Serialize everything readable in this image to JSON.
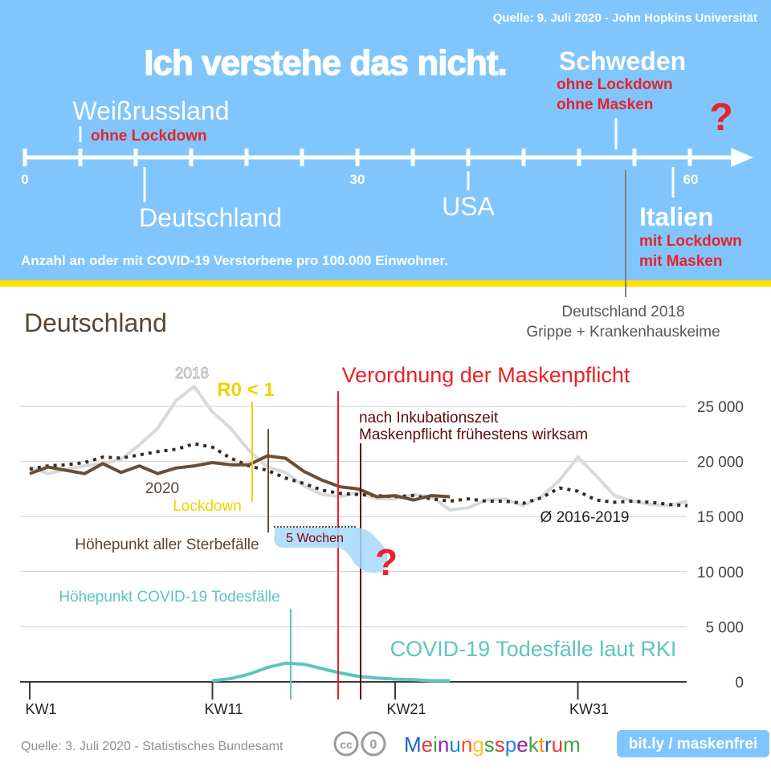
{
  "top": {
    "source": "Quelle: 9. Juli 2020 - John Hopkins Universität",
    "headline": "Ich verstehe das nicht.",
    "caption": "Anzahl an oder mit COVID-19 Verstorbene pro 100.000 Einwohner.",
    "question_mark": "?",
    "scale_labels": [
      "0",
      "30",
      "60"
    ],
    "countries": [
      {
        "name": "Weißrussland",
        "value": 2,
        "notes": [
          "ohne Lockdown"
        ]
      },
      {
        "name": "Deutschland",
        "value": 11,
        "notes": []
      },
      {
        "name": "USA",
        "value": 40,
        "notes": []
      },
      {
        "name": "Schweden",
        "value": 54,
        "notes": [
          "ohne Lockdown",
          "ohne Masken"
        ]
      },
      {
        "name": "Italien",
        "value": 58,
        "notes": [
          "mit Lockdown",
          "mit Masken"
        ]
      }
    ],
    "reference": {
      "lines": [
        "Deutschland 2018",
        "Grippe + Krankenhauskeime"
      ],
      "value": 55
    }
  },
  "chart_data": {
    "type": "line",
    "title": "Deutschland",
    "ylim": [
      0,
      27000
    ],
    "y_ticks": [
      "0",
      "5 000",
      "10 000",
      "15 000",
      "20 000",
      "25 000"
    ],
    "x_ticks": [
      "KW1",
      "KW11",
      "KW21",
      "KW31"
    ],
    "series": [
      {
        "name": "2018",
        "x": [
          1,
          2,
          3,
          4,
          5,
          6,
          7,
          8,
          9,
          10,
          11,
          12,
          13,
          14,
          15,
          16,
          17,
          18,
          19,
          20,
          21,
          22,
          23,
          24,
          25,
          26,
          27,
          28,
          29,
          30,
          31,
          32,
          33,
          34,
          35,
          36,
          37
        ],
        "values": [
          19500,
          18900,
          19300,
          19600,
          19800,
          20200,
          21500,
          23000,
          25500,
          26800,
          24500,
          23000,
          21000,
          19500,
          19000,
          17800,
          17000,
          16800,
          17200,
          16600,
          16600,
          17000,
          16800,
          15600,
          15800,
          16500,
          16600,
          16000,
          16800,
          18300,
          20400,
          18700,
          16900,
          16400,
          16100,
          16000,
          16400
        ]
      },
      {
        "name": "2020",
        "x": [
          1,
          2,
          3,
          4,
          5,
          6,
          7,
          8,
          9,
          10,
          11,
          12,
          13,
          14,
          15,
          16,
          17,
          18,
          19,
          20,
          21,
          22,
          23,
          24
        ],
        "values": [
          18900,
          19500,
          19200,
          18900,
          19800,
          19000,
          19600,
          18900,
          19400,
          19600,
          19900,
          19700,
          19700,
          20500,
          20300,
          19100,
          18300,
          17700,
          17500,
          16800,
          16900,
          16500,
          16900,
          16800
        ]
      },
      {
        "name": "Ø 2016-2019",
        "x": [
          1,
          2,
          3,
          4,
          5,
          6,
          7,
          8,
          9,
          10,
          11,
          12,
          13,
          14,
          15,
          16,
          17,
          18,
          19,
          20,
          21,
          22,
          23,
          24,
          25,
          26,
          27,
          28,
          29,
          30,
          31,
          32,
          33,
          34,
          35,
          36,
          37
        ],
        "values": [
          19300,
          19600,
          19700,
          19900,
          20400,
          20300,
          20600,
          20900,
          21100,
          21600,
          21300,
          20300,
          19600,
          19200,
          18500,
          18000,
          17400,
          17100,
          17000,
          16900,
          16800,
          16900,
          16600,
          16400,
          16600,
          16400,
          16400,
          16200,
          16700,
          17600,
          17300,
          16500,
          16300,
          16400,
          16300,
          16100,
          16000
        ]
      },
      {
        "name": "COVID-19 Todesfälle laut RKI",
        "x": [
          11,
          12,
          13,
          14,
          15,
          16,
          17,
          18,
          19,
          20,
          21,
          22,
          23,
          24
        ],
        "values": [
          100,
          300,
          700,
          1300,
          1700,
          1600,
          1200,
          800,
          500,
          350,
          250,
          200,
          100,
          100
        ]
      }
    ],
    "annotations": {
      "maskenpflicht": "Verordnung der Maskenpflicht",
      "r0": "R0 < 1",
      "lockdown": "Lockdown",
      "inkubation": [
        "nach Inkubationszeit",
        "Maskenpflicht frühestens wirksam"
      ],
      "hoehepunkt_sterbe": "Höhepunkt aller Sterbefälle",
      "hoehepunkt_covid": "Höhepunkt COVID-19 Todesfälle",
      "wochen": "5 Wochen",
      "question": "?",
      "label_2020": "2020",
      "label_2018": "2018",
      "label_avg": "Ø 2016-2019",
      "label_covid": "COVID-19 Todesfälle laut RKI"
    }
  },
  "footer": {
    "source": "Quelle: 3. Juli 2020 - Statistisches Bundesamt",
    "cc": "cc",
    "zero": "0",
    "brand": "Meinungsspektrum",
    "brand_colors": [
      "#1565c0",
      "#e53935",
      "#43a047",
      "#8e24aa",
      "#1e88e5",
      "#f4511e",
      "#fbc02d",
      "#43a047",
      "#e53935",
      "#1e88e5",
      "#8e24aa",
      "#43a047",
      "#fb8c00",
      "#1565c0",
      "#e53935",
      "#43a047"
    ],
    "link": "bit.ly / maskenfrei"
  },
  "colors": {
    "sky": "#80c6fc",
    "yellow": "#fde102",
    "red": "#e8222a",
    "brown": "#6b4e35",
    "teal": "#5ec4c0",
    "gray": "#d9d9d9",
    "gold": "#f5d000",
    "darkred": "#5c0b0b"
  }
}
